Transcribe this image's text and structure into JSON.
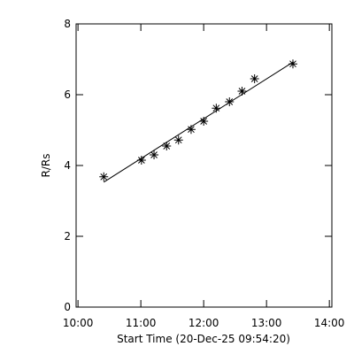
{
  "chart_data": {
    "type": "scatter",
    "xlabel": "Start Time (20-Dec-25 09:54:20)",
    "ylabel": "R/Rs",
    "x": [
      10.41,
      11.01,
      11.21,
      11.41,
      11.6,
      11.8,
      12.0,
      12.2,
      12.41,
      12.61,
      12.81,
      13.42
    ],
    "values": [
      3.68,
      4.15,
      4.3,
      4.55,
      4.72,
      5.02,
      5.25,
      5.62,
      5.8,
      6.1,
      6.45,
      6.87
    ],
    "fit": {
      "x": [
        10.41,
        13.43
      ],
      "values": [
        3.53,
        6.93
      ]
    },
    "color": "#000000",
    "xlim": [
      9.97,
      14.04
    ],
    "xticks": [
      {
        "value": 10,
        "label": "10:00"
      },
      {
        "value": 11,
        "label": "11:00"
      },
      {
        "value": 12,
        "label": "12:00"
      },
      {
        "value": 13,
        "label": "13:00"
      },
      {
        "value": 14,
        "label": "14:00"
      }
    ],
    "ylim": [
      0,
      8
    ],
    "yticks": [
      0,
      2,
      4,
      6,
      8
    ]
  }
}
